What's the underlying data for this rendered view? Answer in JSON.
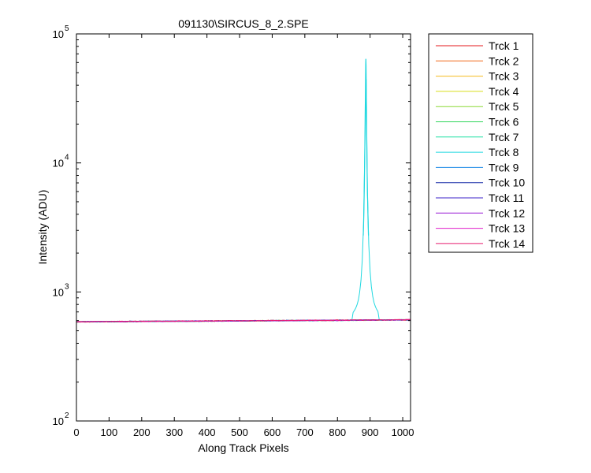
{
  "chart_data": {
    "type": "line",
    "title": "091130\\SIRCUS_8_2.SPE",
    "xlabel": "Along Track Pixels",
    "ylabel": "Intensity (ADU)",
    "xlim": [
      0,
      1024
    ],
    "ylim": [
      100,
      100000
    ],
    "yscale": "log",
    "grid": false,
    "legend_position": "outside-top-right",
    "x_ticks": [
      0,
      100,
      200,
      300,
      400,
      500,
      600,
      700,
      800,
      900,
      1000
    ],
    "y_ticks": [
      {
        "value": 100,
        "base": "10",
        "exp": "2"
      },
      {
        "value": 1000,
        "base": "10",
        "exp": "3"
      },
      {
        "value": 10000,
        "base": "10",
        "exp": "4"
      },
      {
        "value": 100000,
        "base": "10",
        "exp": "5"
      }
    ],
    "series": [
      {
        "name": "Trck 1",
        "color": "#e6191e",
        "baseline": 586
      },
      {
        "name": "Trck 2",
        "color": "#f26a1b",
        "baseline": 588
      },
      {
        "name": "Trck 3",
        "color": "#f5bd1f",
        "baseline": 587
      },
      {
        "name": "Trck 4",
        "color": "#d8de1a",
        "baseline": 587
      },
      {
        "name": "Trck 5",
        "color": "#8bd936",
        "baseline": 587
      },
      {
        "name": "Trck 6",
        "color": "#2fd65a",
        "baseline": 586
      },
      {
        "name": "Trck 7",
        "color": "#1fe0a3",
        "baseline": 587
      },
      {
        "name": "Trck 8",
        "color": "#1fd8e0",
        "baseline": 586,
        "peak": {
          "x": 887,
          "y": 64000
        }
      },
      {
        "name": "Trck 9",
        "color": "#1f8be6",
        "baseline": 587
      },
      {
        "name": "Trck 10",
        "color": "#1a2ea8",
        "baseline": 587
      },
      {
        "name": "Trck 11",
        "color": "#3b22c9",
        "baseline": 587
      },
      {
        "name": "Trck 12",
        "color": "#9a1fd6",
        "baseline": 587
      },
      {
        "name": "Trck 13",
        "color": "#e01fcc",
        "baseline": 587
      },
      {
        "name": "Trck 14",
        "color": "#e61a6e",
        "baseline": 588
      }
    ]
  }
}
